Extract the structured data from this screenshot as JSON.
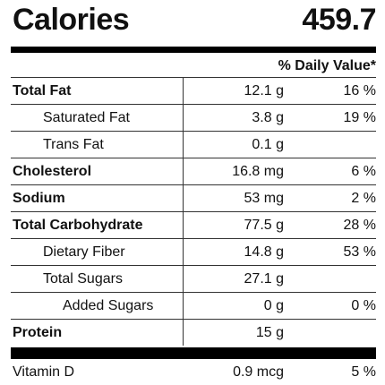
{
  "calories": {
    "label": "Calories",
    "value": "459.7"
  },
  "daily_value_header": "% Daily Value*",
  "rows": [
    {
      "name": "Total Fat",
      "amount": "12.1 g",
      "dv": "16 %",
      "level": 0
    },
    {
      "name": "Saturated Fat",
      "amount": "3.8 g",
      "dv": "19 %",
      "level": 1
    },
    {
      "name": "Trans Fat",
      "amount": "0.1 g",
      "dv": "",
      "level": 1
    },
    {
      "name": "Cholesterol",
      "amount": "16.8 mg",
      "dv": "6 %",
      "level": 0
    },
    {
      "name": "Sodium",
      "amount": "53 mg",
      "dv": "2 %",
      "level": 0
    },
    {
      "name": "Total Carbohydrate",
      "amount": "77.5 g",
      "dv": "28 %",
      "level": 0
    },
    {
      "name": "Dietary Fiber",
      "amount": "14.8 g",
      "dv": "53 %",
      "level": 1
    },
    {
      "name": "Total Sugars",
      "amount": "27.1 g",
      "dv": "",
      "level": 1
    },
    {
      "name": "Added Sugars",
      "amount": "0 g",
      "dv": "0 %",
      "level": 2
    },
    {
      "name": "Protein",
      "amount": "15 g",
      "dv": "",
      "level": 0
    }
  ],
  "vitamins": [
    {
      "name": "Vitamin D",
      "amount": "0.9 mcg",
      "dv": "5 %"
    }
  ]
}
